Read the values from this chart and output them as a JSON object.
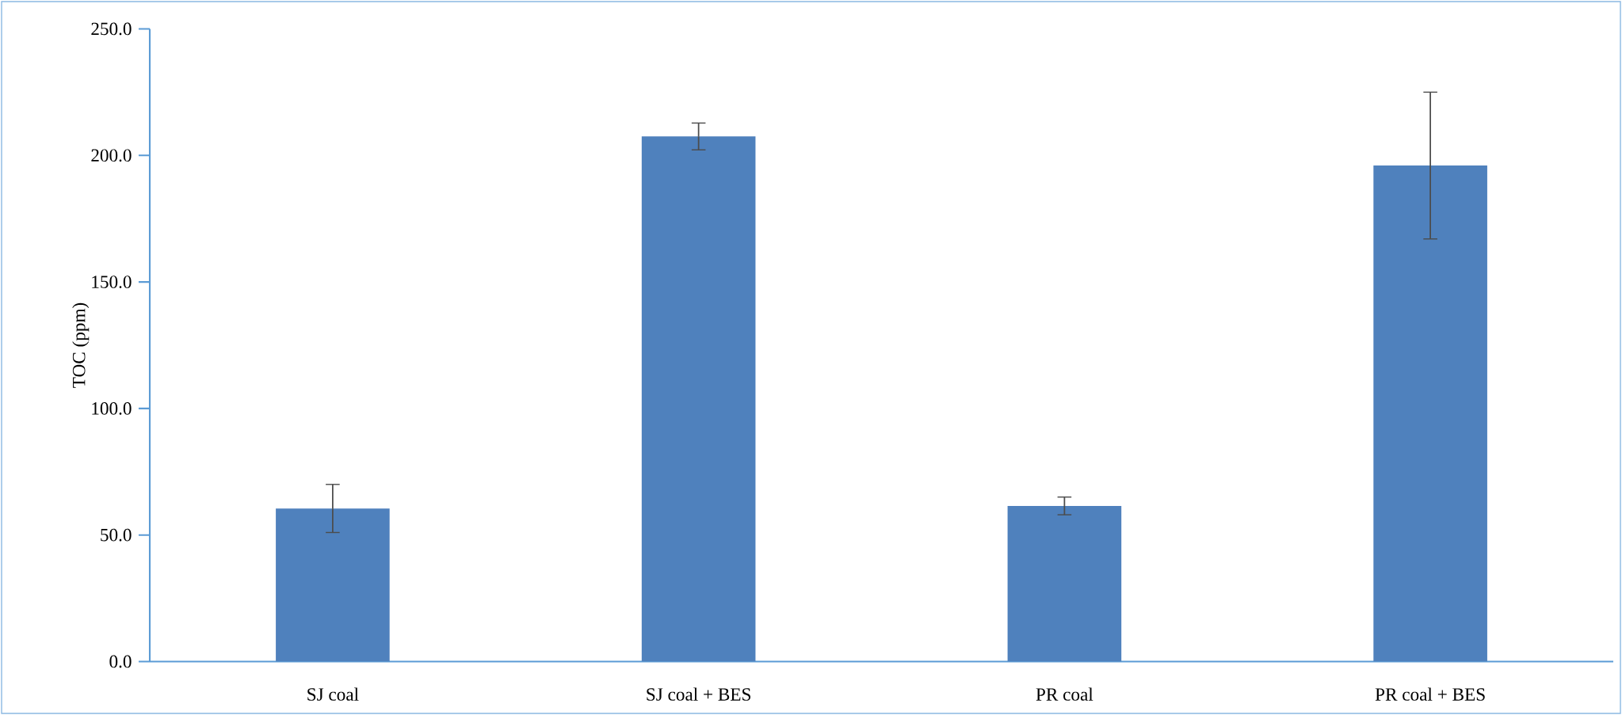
{
  "chart_data": {
    "type": "bar",
    "ylabel": "TOC (ppm)",
    "categories": [
      "SJ coal",
      "SJ coal + BES",
      "PR coal",
      "PR coal + BES"
    ],
    "values": [
      60.5,
      207.5,
      61.5,
      196
    ],
    "errors": [
      9.5,
      5.3,
      3.5,
      29
    ],
    "color": "#4f81bd",
    "ylim": [
      0,
      250
    ],
    "yticks": [
      {
        "value": 0,
        "label": "0.0"
      },
      {
        "value": 50,
        "label": "50.0"
      },
      {
        "value": 100,
        "label": "100.0"
      },
      {
        "value": 150,
        "label": "150.0"
      },
      {
        "value": 200,
        "label": "200.0"
      },
      {
        "value": 250,
        "label": "250.0"
      }
    ],
    "grid": false
  }
}
